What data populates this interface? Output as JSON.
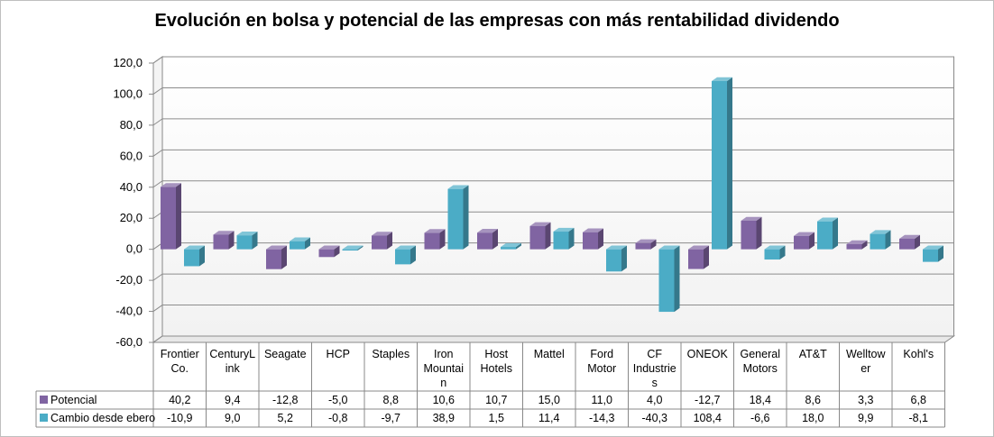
{
  "chart_data": {
    "type": "bar",
    "title": "Evolución en bolsa y potencial de las empresas con más rentabilidad dividendo",
    "categories": [
      "Frontier Co.",
      "CenturyLink",
      "Seagate",
      "HCP",
      "Staples",
      "Iron Mountain",
      "Host Hotels",
      "Mattel",
      "Ford Motor",
      "CF Industries",
      "ONEOK",
      "General Motors",
      "AT&T",
      "Welltower",
      "Kohl's"
    ],
    "category_lines": [
      [
        "Frontier",
        "Co."
      ],
      [
        "CenturyL",
        "ink"
      ],
      [
        "Seagate"
      ],
      [
        "HCP"
      ],
      [
        "Staples"
      ],
      [
        "Iron",
        "Mountai",
        "n"
      ],
      [
        "Host",
        "Hotels"
      ],
      [
        "Mattel"
      ],
      [
        "Ford",
        "Motor"
      ],
      [
        "CF",
        "Industrie",
        "s"
      ],
      [
        "ONEOK"
      ],
      [
        "General",
        "Motors"
      ],
      [
        "AT&T"
      ],
      [
        "Welltow",
        "er"
      ],
      [
        "Kohl's"
      ]
    ],
    "series": [
      {
        "name": "Potencial",
        "color": "#8064a2",
        "values": [
          40.2,
          9.4,
          -12.8,
          -5.0,
          8.8,
          10.6,
          10.7,
          15.0,
          11.0,
          4.0,
          -12.7,
          18.4,
          8.6,
          3.3,
          6.8
        ],
        "labels": [
          "40,2",
          "9,4",
          "-12,8",
          "-5,0",
          "8,8",
          "10,6",
          "10,7",
          "15,0",
          "11,0",
          "4,0",
          "-12,7",
          "18,4",
          "8,6",
          "3,3",
          "6,8"
        ]
      },
      {
        "name": "Cambio desde ebero",
        "color": "#4bacc6",
        "values": [
          -10.9,
          9.0,
          5.2,
          -0.8,
          -9.7,
          38.9,
          1.5,
          11.4,
          -14.3,
          -40.3,
          108.4,
          -6.6,
          18.0,
          9.9,
          -8.1
        ],
        "labels": [
          "-10,9",
          "9,0",
          "5,2",
          "-0,8",
          "-9,7",
          "38,9",
          "1,5",
          "11,4",
          "-14,3",
          "-40,3",
          "108,4",
          "-6,6",
          "18,0",
          "9,9",
          "-8,1"
        ]
      }
    ],
    "yticks": [
      -60,
      -40,
      -20,
      0,
      20,
      40,
      60,
      80,
      100,
      120
    ],
    "ytick_labels": [
      "-60,0",
      "-40,0",
      "-20,0",
      "0,0",
      "20,0",
      "40,0",
      "60,0",
      "80,0",
      "100,0",
      "120,0"
    ],
    "ylim": [
      -60,
      120
    ],
    "grid": true,
    "legend": "data-table"
  }
}
